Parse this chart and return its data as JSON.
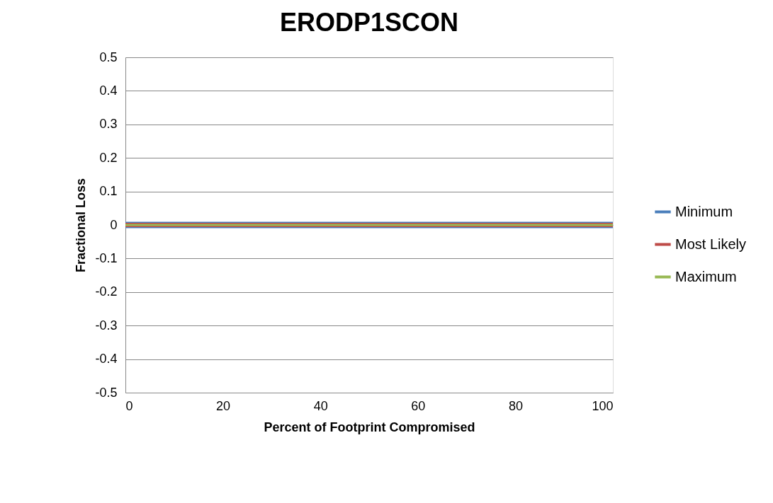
{
  "chart_data": {
    "type": "line",
    "title": "ERODP1SCON",
    "xlabel": "Percent of Footprint Compromised",
    "ylabel": "Fractional Loss",
    "x": [
      0,
      100
    ],
    "series": [
      {
        "name": "Minimum",
        "color": "#4a7ebb",
        "values": [
          0,
          0
        ]
      },
      {
        "name": "Most Likely",
        "color": "#be4b48",
        "values": [
          0,
          0
        ]
      },
      {
        "name": "Maximum",
        "color": "#98b954",
        "values": [
          0,
          0
        ]
      }
    ],
    "xlim": [
      0,
      100
    ],
    "xticks": [
      0,
      20,
      40,
      60,
      80,
      100
    ],
    "ylim": [
      -0.5,
      0.5
    ],
    "yticks": [
      -0.5,
      -0.4,
      -0.3,
      -0.2,
      -0.1,
      0,
      0.1,
      0.2,
      0.3,
      0.4,
      0.5
    ],
    "grid": "y",
    "legend": "right",
    "marker": "none",
    "line_style": "solid"
  }
}
